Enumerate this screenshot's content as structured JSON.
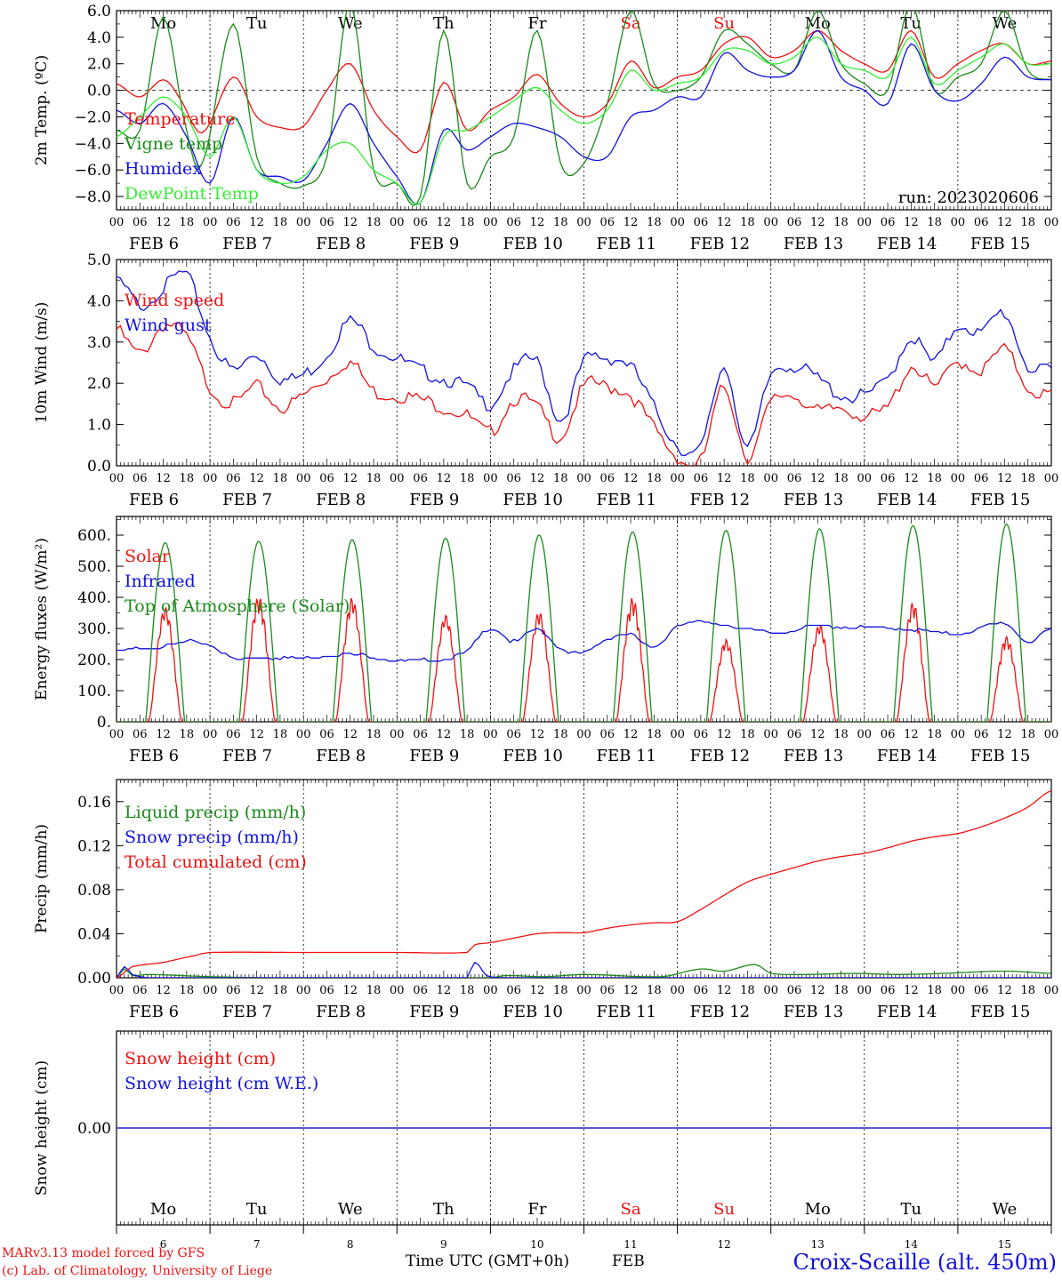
{
  "colors": {
    "red": "#ee1111",
    "green": "#1a8a1a",
    "lightgreen": "#33ee33",
    "blue": "#1111dd",
    "purple": "#7a2a8a",
    "axis": "#000000"
  },
  "x_axis": {
    "hour_labels": [
      "00",
      "06",
      "12",
      "18"
    ],
    "dates": [
      "FEB  6",
      "FEB  7",
      "FEB  8",
      "FEB  9",
      "FEB 10",
      "FEB 11",
      "FEB 12",
      "FEB 13",
      "FEB 14",
      "FEB 15"
    ],
    "day_numbers": [
      "6",
      "7",
      "8",
      "9",
      "10",
      "11",
      "12",
      "13",
      "14",
      "15"
    ],
    "weekdays": [
      "Mo",
      "Tu",
      "We",
      "Th",
      "Fr",
      "Sa",
      "Su",
      "Mo",
      "Tu",
      "We"
    ],
    "weekend_color": "#ee1111",
    "weekend_indices": [
      5,
      6
    ]
  },
  "footer": {
    "model_line1": "MARv3.13 model forced by GFS",
    "model_line2": "(c) Lab. of Climatology, University of Liege",
    "time_label": "Time UTC (GMT+0h)",
    "month_label": "FEB",
    "location": "Croix-Scaille (alt. 450m)"
  },
  "chart_data": [
    {
      "id": "temperature",
      "type": "line",
      "ylabel": "2m Temp. (ºC)",
      "ylim": [
        -9,
        6
      ],
      "yticks": [
        -8,
        -6,
        -4,
        -2,
        0,
        2,
        4,
        6
      ],
      "ytick_labels": [
        "−8.0",
        "−6.0",
        "−4.0",
        "−2.0",
        "0.0",
        "2.0",
        "4.0",
        "6.0"
      ],
      "zero_line": true,
      "annotation": "run: 2023020606",
      "x_unit": "hours since FEB 6 00 UTC",
      "series": [
        {
          "name": "Temperature",
          "color": "#ee1111",
          "x": [
            0,
            6,
            12,
            16,
            22,
            30,
            36,
            42,
            48,
            54,
            60,
            66,
            72,
            78,
            84,
            90,
            96,
            102,
            108,
            114,
            120,
            126,
            132,
            138,
            144,
            150,
            156,
            162,
            168,
            174,
            180,
            186,
            192,
            198,
            204,
            210,
            216,
            222,
            228,
            234,
            240
          ],
          "values": [
            0.5,
            -0.5,
            0.8,
            -0.5,
            -3.2,
            1.0,
            -2.0,
            -2.8,
            -2.7,
            0.0,
            2.0,
            -1.5,
            -3.5,
            -4.5,
            0.6,
            -3.0,
            -1.5,
            -0.5,
            1.2,
            -1.0,
            -2.0,
            -1.0,
            2.2,
            0.2,
            1.0,
            1.5,
            3.5,
            4.0,
            2.5,
            3.0,
            4.5,
            3.0,
            2.0,
            1.5,
            4.5,
            1.0,
            2.0,
            3.0,
            3.5,
            2.0,
            2.2
          ]
        },
        {
          "name": "Vigne temp",
          "color": "#1a8a1a",
          "x": [
            0,
            6,
            12,
            18,
            22,
            30,
            36,
            42,
            48,
            54,
            60,
            66,
            72,
            78,
            84,
            90,
            96,
            102,
            108,
            114,
            120,
            126,
            132,
            138,
            144,
            150,
            156,
            162,
            168,
            174,
            180,
            186,
            192,
            198,
            204,
            210,
            216,
            222,
            228,
            234,
            240
          ],
          "values": [
            -3.0,
            -3.0,
            5.5,
            -3.0,
            -5.5,
            5.0,
            -5.0,
            -7.0,
            -7.2,
            -5.0,
            6.5,
            -6.0,
            -7.0,
            -8.0,
            4.5,
            -7.0,
            -5.0,
            -3.5,
            4.5,
            -5.5,
            -5.5,
            -1.0,
            6.0,
            0.5,
            0.0,
            1.0,
            4.5,
            3.5,
            2.0,
            1.5,
            6.0,
            2.0,
            0.5,
            0.0,
            6.5,
            0.0,
            1.0,
            2.0,
            6.0,
            1.5,
            0.8
          ]
        },
        {
          "name": "Humidex",
          "color": "#1111dd",
          "x": [
            0,
            6,
            12,
            18,
            24,
            30,
            36,
            42,
            48,
            54,
            60,
            66,
            72,
            78,
            84,
            90,
            96,
            102,
            108,
            114,
            120,
            126,
            132,
            138,
            144,
            150,
            156,
            162,
            168,
            174,
            180,
            186,
            192,
            198,
            204,
            210,
            216,
            222,
            228,
            234,
            240
          ],
          "values": [
            -1.5,
            -2.5,
            -1.0,
            -3.5,
            -7.0,
            -2.0,
            -6.0,
            -6.5,
            -6.8,
            -4.0,
            -1.0,
            -4.0,
            -6.5,
            -8.5,
            -3.0,
            -4.5,
            -3.5,
            -2.5,
            -2.8,
            -3.5,
            -5.0,
            -5.0,
            -2.0,
            -1.5,
            -0.5,
            -0.5,
            2.8,
            1.5,
            1.0,
            1.5,
            4.5,
            1.0,
            0.0,
            -1.0,
            3.5,
            0.0,
            -0.8,
            0.5,
            2.5,
            1.0,
            0.8
          ]
        },
        {
          "name": "DewPoint Temp",
          "color": "#33ee33",
          "x": [
            0,
            6,
            12,
            18,
            24,
            30,
            36,
            42,
            48,
            54,
            60,
            66,
            72,
            78,
            84,
            90,
            96,
            102,
            108,
            114,
            120,
            126,
            132,
            138,
            144,
            150,
            156,
            162,
            168,
            174,
            180,
            186,
            192,
            198,
            204,
            210,
            216,
            222,
            228,
            234,
            240
          ],
          "values": [
            -3.5,
            -2.0,
            -0.5,
            -2.0,
            -5.0,
            -2.0,
            -6.0,
            -7.0,
            -6.5,
            -4.5,
            -4.0,
            -6.0,
            -7.0,
            -8.5,
            -3.5,
            -3.0,
            -2.0,
            -0.8,
            0.2,
            -1.5,
            -2.5,
            -1.5,
            1.5,
            0.0,
            0.5,
            1.0,
            3.0,
            3.0,
            2.0,
            2.5,
            4.0,
            2.0,
            1.5,
            1.0,
            4.0,
            0.5,
            1.5,
            2.5,
            3.5,
            2.0,
            2.0
          ]
        }
      ]
    },
    {
      "id": "wind",
      "type": "line",
      "ylabel": "10m Wind (m/s)",
      "ylim": [
        0,
        5
      ],
      "yticks": [
        0,
        1,
        2,
        3,
        4,
        5
      ],
      "ytick_labels": [
        "0.0",
        "1.0",
        "2.0",
        "3.0",
        "4.0",
        "5.0"
      ],
      "x_unit": "hours since FEB 6 00 UTC",
      "series": [
        {
          "name": "Wind speed",
          "color": "#ee1111",
          "x": [
            0,
            6,
            12,
            18,
            24,
            30,
            36,
            42,
            48,
            54,
            60,
            66,
            72,
            78,
            84,
            90,
            96,
            102,
            108,
            114,
            120,
            126,
            132,
            138,
            144,
            150,
            156,
            162,
            168,
            174,
            180,
            186,
            192,
            198,
            204,
            210,
            216,
            222,
            228,
            234,
            240
          ],
          "values": [
            3.4,
            2.8,
            3.5,
            3.2,
            2.0,
            1.6,
            2.0,
            1.5,
            1.8,
            2.2,
            2.6,
            1.9,
            1.8,
            1.7,
            1.5,
            1.3,
            0.9,
            1.7,
            1.5,
            0.8,
            2.0,
            2.0,
            1.8,
            1.0,
            0.3,
            0.2,
            2.0,
            0.3,
            1.6,
            1.8,
            1.4,
            1.5,
            1.3,
            1.5,
            2.5,
            2.0,
            2.6,
            2.4,
            2.9,
            2.0,
            1.8
          ]
        },
        {
          "name": "Wind gust",
          "color": "#1111dd",
          "x": [
            0,
            6,
            12,
            18,
            24,
            30,
            36,
            42,
            48,
            54,
            60,
            66,
            72,
            78,
            84,
            90,
            96,
            102,
            108,
            114,
            120,
            126,
            132,
            138,
            144,
            150,
            156,
            162,
            168,
            174,
            180,
            186,
            192,
            198,
            204,
            210,
            216,
            222,
            228,
            234,
            240
          ],
          "values": [
            4.6,
            4.0,
            4.4,
            4.7,
            3.2,
            2.4,
            2.8,
            2.2,
            2.3,
            2.8,
            3.6,
            3.0,
            2.7,
            2.4,
            2.2,
            2.0,
            1.6,
            2.4,
            2.6,
            1.2,
            2.6,
            2.7,
            2.5,
            1.5,
            0.6,
            0.5,
            2.5,
            0.5,
            2.3,
            2.5,
            2.2,
            1.8,
            1.8,
            2.2,
            3.2,
            2.6,
            3.5,
            3.3,
            3.8,
            2.5,
            2.4
          ]
        }
      ]
    },
    {
      "id": "energy",
      "type": "line",
      "ylabel": "Energy fluxes (W/m²)",
      "ylim": [
        0,
        660
      ],
      "yticks": [
        0,
        100,
        200,
        300,
        400,
        500,
        600
      ],
      "ytick_labels": [
        "0.",
        "100.",
        "200.",
        "300.",
        "400.",
        "500.",
        "600."
      ],
      "x_unit": "hours since FEB 6 00 UTC",
      "series": [
        {
          "name": "Solar",
          "color": "#ee1111",
          "daily_peak": [
            370,
            405,
            400,
            345,
            355,
            400,
            265,
            315,
            385,
            275
          ]
        },
        {
          "name": "Infrared",
          "color": "#1111dd",
          "x": [
            0,
            6,
            12,
            18,
            24,
            30,
            36,
            48,
            60,
            72,
            84,
            90,
            96,
            102,
            108,
            114,
            120,
            126,
            132,
            138,
            144,
            156,
            168,
            180,
            192,
            204,
            216,
            228,
            234,
            240
          ],
          "values": [
            230,
            240,
            245,
            260,
            250,
            205,
            210,
            210,
            220,
            200,
            205,
            230,
            305,
            260,
            300,
            240,
            225,
            270,
            285,
            240,
            315,
            315,
            290,
            310,
            305,
            300,
            285,
            320,
            260,
            300
          ]
        },
        {
          "name": "Top of Atmosphere (Solar)",
          "color": "#1a8a1a",
          "daily_peak": [
            575,
            580,
            585,
            590,
            600,
            610,
            615,
            620,
            630,
            635
          ]
        }
      ]
    },
    {
      "id": "precip",
      "type": "line",
      "ylabel": "Precip (mm/h)",
      "ylim": [
        0,
        0.18
      ],
      "yticks": [
        0,
        0.04,
        0.08,
        0.12,
        0.16
      ],
      "ytick_labels": [
        "0.00",
        "0.04",
        "0.08",
        "0.12",
        "0.16"
      ],
      "x_unit": "hours since FEB 6 00 UTC",
      "series": [
        {
          "name": "Liquid precip (mm/h)",
          "color": "#1a8a1a",
          "x": [
            0,
            2,
            4,
            8,
            24,
            40,
            96,
            100,
            110,
            120,
            140,
            150,
            156,
            164,
            168,
            176,
            190,
            200,
            212,
            228,
            240
          ],
          "values": [
            0,
            0.008,
            0.002,
            0.003,
            0.001,
            0.0,
            0.0,
            0.002,
            0.001,
            0.003,
            0.001,
            0.008,
            0.006,
            0.012,
            0.004,
            0.003,
            0.004,
            0.003,
            0.004,
            0.006,
            0.004
          ]
        },
        {
          "name": "Snow precip (mm/h)",
          "color": "#1111dd",
          "x": [
            0,
            2,
            4,
            8,
            90,
            92,
            95,
            100,
            240
          ],
          "values": [
            0,
            0.01,
            0.003,
            0.0,
            0.0,
            0.014,
            0.002,
            0.0,
            0.0
          ]
        },
        {
          "name": "Total cumulated (cm)",
          "color": "#ee1111",
          "x": [
            0,
            4,
            12,
            20,
            24,
            48,
            72,
            90,
            92,
            96,
            102,
            108,
            114,
            120,
            126,
            132,
            138,
            144,
            150,
            156,
            162,
            168,
            174,
            180,
            186,
            192,
            198,
            204,
            210,
            216,
            222,
            228,
            234,
            240
          ],
          "values": [
            0,
            0.01,
            0.014,
            0.02,
            0.023,
            0.023,
            0.023,
            0.023,
            0.03,
            0.032,
            0.036,
            0.04,
            0.041,
            0.041,
            0.045,
            0.048,
            0.05,
            0.051,
            0.062,
            0.075,
            0.087,
            0.094,
            0.1,
            0.106,
            0.11,
            0.113,
            0.118,
            0.124,
            0.128,
            0.131,
            0.137,
            0.145,
            0.155,
            0.17
          ]
        }
      ]
    },
    {
      "id": "snow",
      "type": "line",
      "ylabel": "Snow height (cm)",
      "ylim": [
        -1,
        1
      ],
      "yticks": [
        0
      ],
      "ytick_labels": [
        "0.00"
      ],
      "x_unit": "hours since FEB 6 00 UTC",
      "series": [
        {
          "name": "Snow height (cm)",
          "color": "#ee1111",
          "x": [
            0,
            240
          ],
          "values": [
            0,
            0
          ]
        },
        {
          "name": "Snow height (cm W.E.)",
          "color": "#1111dd",
          "x": [
            0,
            240
          ],
          "values": [
            0,
            0
          ]
        }
      ]
    }
  ]
}
